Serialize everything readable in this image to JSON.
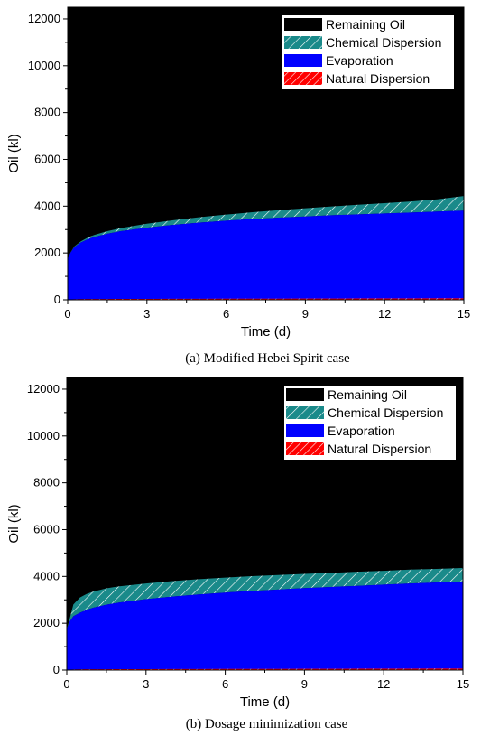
{
  "chart_data": [
    {
      "type": "area",
      "caption": "(a) Modified Hebei Spirit case",
      "xlabel": "Time (d)",
      "ylabel": "Oil (kl)",
      "xlim": [
        0,
        15
      ],
      "ylim": [
        0,
        12500
      ],
      "xticks": [
        "0",
        "3",
        "6",
        "9",
        "12",
        "15"
      ],
      "yticks": [
        "0",
        "2000",
        "4000",
        "6000",
        "8000",
        "10000",
        "12000"
      ],
      "legend_position": "top-right",
      "x": [
        0,
        0.1,
        0.25,
        0.5,
        0.75,
        1,
        1.5,
        2,
        3,
        4,
        5,
        6,
        7,
        8,
        9,
        10,
        11,
        12,
        13,
        14,
        15
      ],
      "series": [
        {
          "name": "Remaining Oil",
          "color": "#000000",
          "pattern": "solid",
          "values": [
            12500,
            12500,
            12500,
            12500,
            12500,
            12500,
            12500,
            12500,
            12500,
            12500,
            12500,
            12500,
            12500,
            12500,
            12500,
            12500,
            12500,
            12500,
            12500,
            12500,
            12500
          ]
        },
        {
          "name": "Chemical Dispersion",
          "color": "#1a8a8a",
          "pattern": "hatch",
          "values": [
            0,
            10,
            30,
            50,
            70,
            90,
            110,
            130,
            170,
            200,
            230,
            260,
            290,
            320,
            350,
            380,
            410,
            440,
            470,
            520,
            620
          ]
        },
        {
          "name": "Evaporation",
          "color": "#0000ff",
          "pattern": "solid",
          "values": [
            1750,
            2000,
            2250,
            2450,
            2580,
            2680,
            2820,
            2930,
            3080,
            3200,
            3300,
            3380,
            3450,
            3510,
            3560,
            3610,
            3650,
            3690,
            3730,
            3770,
            3810
          ]
        },
        {
          "name": "Natural Dispersion",
          "color": "#ff0000",
          "pattern": "hatch",
          "values": [
            0,
            15,
            25,
            30,
            32,
            34,
            36,
            38,
            40,
            42,
            44,
            46,
            48,
            50,
            52,
            54,
            56,
            58,
            60,
            62,
            64
          ]
        }
      ]
    },
    {
      "type": "area",
      "caption": "(b) Dosage minimization case",
      "xlabel": "Time (d)",
      "ylabel": "Oil (kl)",
      "xlim": [
        0,
        15
      ],
      "ylim": [
        0,
        12500
      ],
      "xticks": [
        "0",
        "3",
        "6",
        "9",
        "12",
        "15"
      ],
      "yticks": [
        "0",
        "2000",
        "4000",
        "6000",
        "8000",
        "10000",
        "12000"
      ],
      "legend_position": "top-right",
      "x": [
        0,
        0.1,
        0.25,
        0.5,
        0.75,
        1,
        1.5,
        2,
        3,
        4,
        5,
        6,
        7,
        8,
        9,
        10,
        11,
        12,
        13,
        14,
        15
      ],
      "series": [
        {
          "name": "Remaining Oil",
          "color": "#000000",
          "pattern": "solid",
          "values": [
            12500,
            12500,
            12500,
            12500,
            12500,
            12500,
            12500,
            12500,
            12500,
            12500,
            12500,
            12500,
            12500,
            12500,
            12500,
            12500,
            12500,
            12500,
            12500,
            12500,
            12500
          ]
        },
        {
          "name": "Chemical Dispersion",
          "color": "#1a8a8a",
          "pattern": "hatch",
          "values": [
            0,
            100,
            500,
            650,
            680,
            690,
            700,
            690,
            670,
            660,
            650,
            640,
            630,
            620,
            610,
            600,
            600,
            590,
            590,
            580,
            580
          ]
        },
        {
          "name": "Evaporation",
          "color": "#0000ff",
          "pattern": "solid",
          "values": [
            1750,
            2050,
            2300,
            2450,
            2570,
            2660,
            2790,
            2890,
            3030,
            3140,
            3230,
            3310,
            3380,
            3440,
            3500,
            3550,
            3600,
            3650,
            3700,
            3740,
            3780
          ]
        },
        {
          "name": "Natural Dispersion",
          "color": "#ff0000",
          "pattern": "hatch",
          "values": [
            0,
            15,
            25,
            30,
            32,
            34,
            36,
            38,
            40,
            42,
            44,
            46,
            48,
            50,
            52,
            54,
            56,
            58,
            60,
            62,
            64
          ]
        }
      ]
    }
  ]
}
